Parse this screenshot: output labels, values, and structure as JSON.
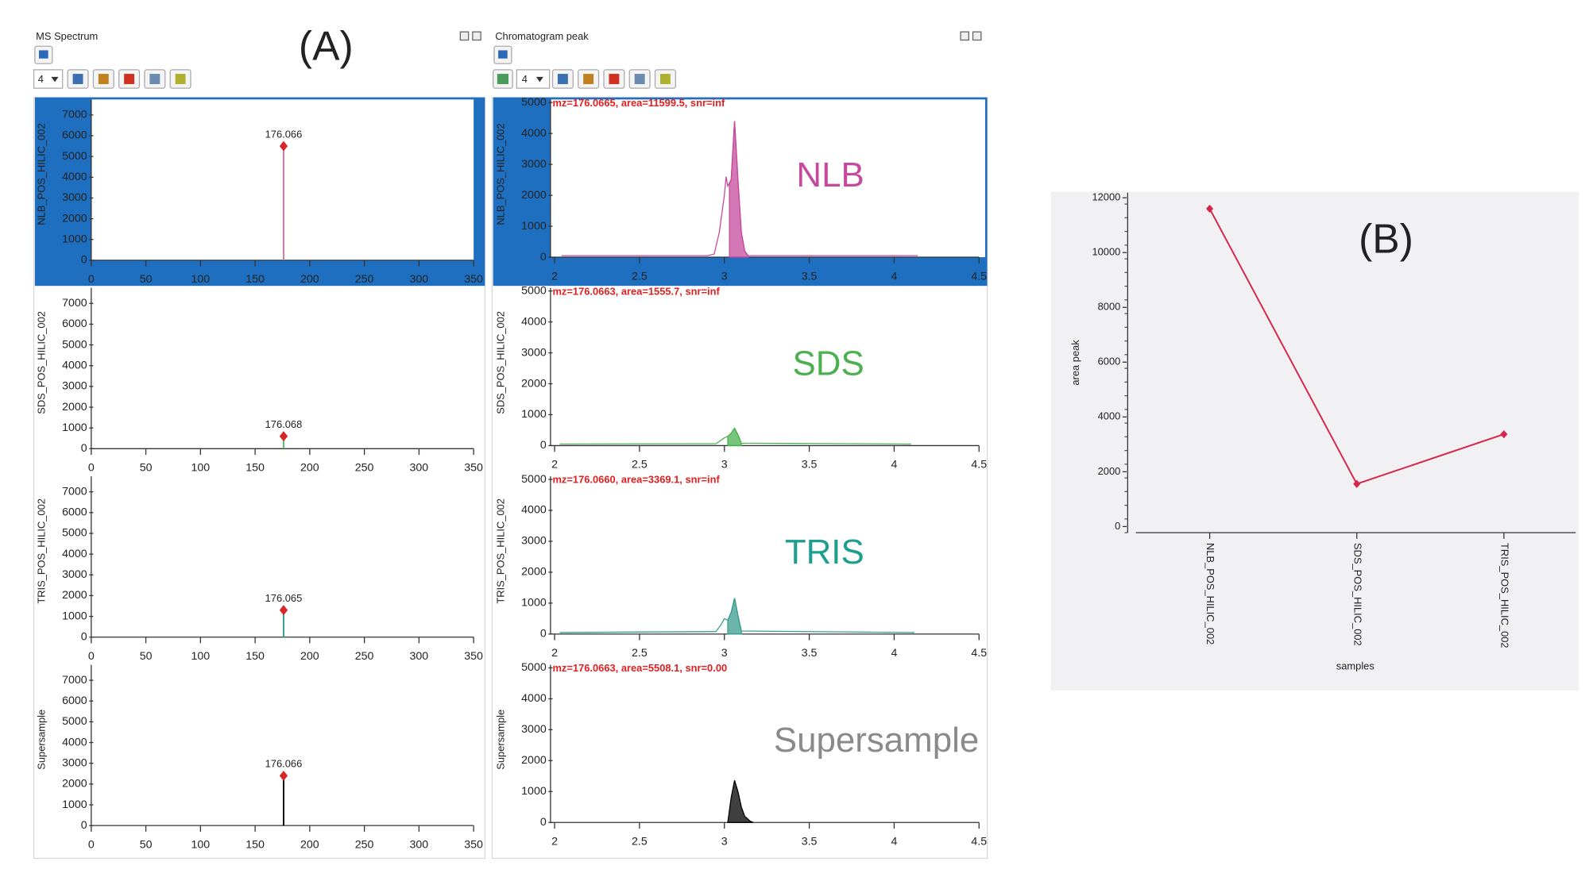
{
  "labels": {
    "a": "(A)",
    "b": "(B)"
  },
  "windows": [
    {
      "title": "MS Spectrum",
      "toolbar_value": "4"
    },
    {
      "title": "Chromatogram peak",
      "toolbar_value": "4"
    }
  ],
  "chart_data": [
    {
      "type": "stem",
      "ylabel": "NLB_POS_HILIC_002",
      "x": [
        176.066
      ],
      "values": [
        5500
      ],
      "color": "#c77ba7",
      "marker_color": "#d62828",
      "selected": true,
      "xlim": [
        0,
        350
      ],
      "xticks": [
        0,
        50,
        100,
        150,
        200,
        250,
        300,
        350
      ],
      "ylim": [
        0,
        7500
      ],
      "yticks": [
        0,
        1000,
        2000,
        3000,
        4000,
        5000,
        6000,
        7000
      ]
    },
    {
      "type": "stem",
      "ylabel": "SDS_POS_HILIC_002",
      "x": [
        176.068
      ],
      "values": [
        600
      ],
      "color": "#5fb86a",
      "marker_color": "#d62828",
      "selected": false,
      "xlim": [
        0,
        350
      ],
      "xticks": [
        0,
        50,
        100,
        150,
        200,
        250,
        300,
        350
      ],
      "ylim": [
        0,
        7500
      ],
      "yticks": [
        0,
        1000,
        2000,
        3000,
        4000,
        5000,
        6000,
        7000
      ]
    },
    {
      "type": "stem",
      "ylabel": "TRIS_POS_HILIC_002",
      "x": [
        176.065
      ],
      "values": [
        1300
      ],
      "color": "#2f9e8f",
      "marker_color": "#d62828",
      "selected": false,
      "xlim": [
        0,
        350
      ],
      "xticks": [
        0,
        50,
        100,
        150,
        200,
        250,
        300,
        350
      ],
      "ylim": [
        0,
        7500
      ],
      "yticks": [
        0,
        1000,
        2000,
        3000,
        4000,
        5000,
        6000,
        7000
      ]
    },
    {
      "type": "stem",
      "ylabel": "Supersample",
      "x": [
        176.066
      ],
      "values": [
        2400
      ],
      "color": "#000000",
      "marker_color": "#d62828",
      "selected": false,
      "xlim": [
        0,
        350
      ],
      "xticks": [
        0,
        50,
        100,
        150,
        200,
        250,
        300,
        350
      ],
      "ylim": [
        0,
        7500
      ],
      "yticks": [
        0,
        1000,
        2000,
        3000,
        4000,
        5000,
        6000,
        7000
      ]
    },
    {
      "type": "area",
      "label": "NLB",
      "label_color": "#c5499c",
      "annotation": "mz=176.0665, area=11599.5, snr=inf",
      "ylabel": "NLB_POS_HILIC_002",
      "color": "#c5499c",
      "selected": true,
      "x": [
        2.04,
        2.9,
        2.94,
        2.97,
        3.0,
        3.01,
        3.02,
        3.04,
        3.06,
        3.08,
        3.1,
        3.12,
        3.14,
        4.14
      ],
      "values": [
        50,
        50,
        100,
        800,
        2000,
        2600,
        2300,
        2500,
        4400,
        2500,
        800,
        200,
        50,
        50
      ],
      "peak_x": [
        3.03,
        3.04,
        3.06,
        3.08,
        3.1,
        3.12,
        3.14
      ],
      "peak_values": [
        2400,
        2500,
        4400,
        2500,
        800,
        200,
        50
      ],
      "xlim": [
        2,
        4.5
      ],
      "xticks": [
        2,
        2.5,
        3,
        3.5,
        4,
        4.5
      ],
      "ylim": [
        0,
        5000
      ],
      "yticks": [
        0,
        1000,
        2000,
        3000,
        4000,
        5000
      ]
    },
    {
      "type": "area",
      "label": "SDS",
      "label_color": "#4cb050",
      "annotation": "mz=176.0663, area=1555.7, snr=inf",
      "ylabel": "SDS_POS_HILIC_002",
      "color": "#4cb050",
      "selected": false,
      "x": [
        2.03,
        2.95,
        3.0,
        3.02,
        3.04,
        3.06,
        3.08,
        3.1,
        4.1
      ],
      "values": [
        50,
        60,
        250,
        300,
        400,
        560,
        350,
        80,
        50
      ],
      "peak_x": [
        3.02,
        3.04,
        3.06,
        3.08,
        3.1
      ],
      "peak_values": [
        300,
        400,
        560,
        350,
        80
      ],
      "xlim": [
        2,
        4.5
      ],
      "xticks": [
        2,
        2.5,
        3,
        3.5,
        4,
        4.5
      ],
      "ylim": [
        0,
        5000
      ],
      "yticks": [
        0,
        1000,
        2000,
        3000,
        4000,
        5000
      ]
    },
    {
      "type": "area",
      "label": "TRIS",
      "label_color": "#1f9e8f",
      "annotation": "mz=176.0660, area=3369.1, snr=inf",
      "ylabel": "TRIS_POS_HILIC_002",
      "color": "#3a9c8e",
      "selected": false,
      "x": [
        2.03,
        2.95,
        2.98,
        3.0,
        3.02,
        3.04,
        3.06,
        3.08,
        3.1,
        4.12
      ],
      "values": [
        50,
        80,
        300,
        500,
        450,
        700,
        1160,
        600,
        100,
        50
      ],
      "peak_x": [
        3.02,
        3.04,
        3.06,
        3.08,
        3.1
      ],
      "peak_values": [
        450,
        700,
        1160,
        600,
        100
      ],
      "xlim": [
        2,
        4.5
      ],
      "xticks": [
        2,
        2.5,
        3,
        3.5,
        4,
        4.5
      ],
      "ylim": [
        0,
        5000
      ],
      "yticks": [
        0,
        1000,
        2000,
        3000,
        4000,
        5000
      ]
    },
    {
      "type": "area",
      "label": "Supersample",
      "label_color": "#8a8a8a",
      "annotation": "mz=176.0663, area=5508.1, snr=0.00",
      "ylabel": "Supersample",
      "color": "#000000",
      "selected": false,
      "peak_x": [
        3.02,
        3.04,
        3.06,
        3.08,
        3.1,
        3.12,
        3.15,
        3.17
      ],
      "peak_values": [
        0,
        800,
        1360,
        1000,
        500,
        200,
        50,
        0
      ],
      "xlim": [
        2,
        4.5
      ],
      "xticks": [
        2,
        2.5,
        3,
        3.5,
        4,
        4.5
      ],
      "ylim": [
        0,
        5000
      ],
      "yticks": [
        0,
        1000,
        2000,
        3000,
        4000,
        5000
      ]
    },
    {
      "type": "line",
      "xlabel": "samples",
      "ylabel": "area peak",
      "color": "#d6234a",
      "categories": [
        "NLB_POS_HILIC_002",
        "SDS_POS_HILIC_002",
        "TRIS_POS_HILIC_002"
      ],
      "values": [
        11599.5,
        1555.7,
        3369.1
      ],
      "ylim": [
        0,
        12000
      ],
      "yticks": [
        0,
        2000,
        4000,
        6000,
        8000,
        10000,
        12000
      ]
    }
  ]
}
